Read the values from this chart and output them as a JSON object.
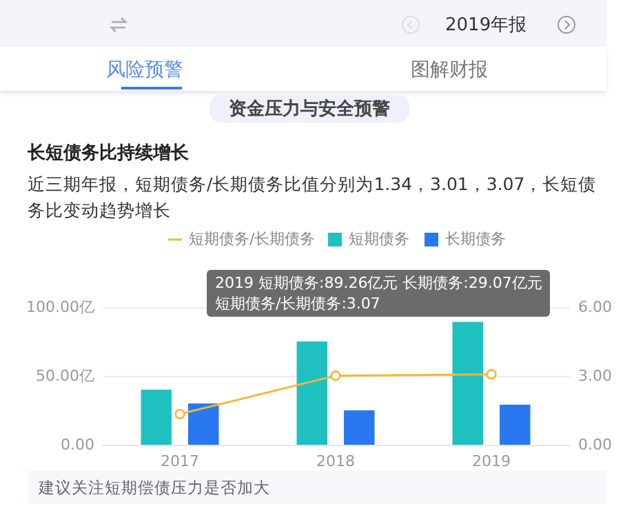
{
  "chart_data": {
    "type": "bar",
    "title": "长短债务比持续增长",
    "subtitle": "近三期年报，短期债务/长期债务比值分别为1.34，3.01，3.07，长短债务比变动趋势增长",
    "annotations": [
      "2019年报",
      "风险预警",
      "图解财报",
      "资金压力与安全预警",
      "2019",
      "短期债务:89.26亿元",
      "长期债务:29.07亿元",
      "短期债务/长期债务:3.07",
      "建议关注短期偿债压力是否加大"
    ],
    "categories": [
      "2017",
      "2018",
      "2019"
    ],
    "series": [
      {
        "name": "短期债务",
        "color": "#1fc0c0",
        "values": [
          40,
          75,
          89.26
        ]
      },
      {
        "name": "长期债务",
        "color": "#2a78f0",
        "values": [
          30,
          25,
          29.07
        ]
      },
      {
        "name": "短期债务/长期债务",
        "color": "#f7b536",
        "type": "line",
        "axis": "y2",
        "values": [
          1.34,
          3.01,
          3.07
        ]
      }
    ],
    "ylim": [
      0,
      100
    ],
    "yticks": [
      {
        "value": 0,
        "label": "0.00"
      },
      {
        "value": 50,
        "label": "50.00亿"
      },
      {
        "value": 100,
        "label": "100.00亿"
      }
    ],
    "y2lim": [
      0,
      6
    ],
    "y2ticks": [
      {
        "value": 0,
        "label": "0.00"
      },
      {
        "value": 3,
        "label": "3.00"
      },
      {
        "value": 6,
        "label": "6.00"
      }
    ],
    "grid": "y",
    "legend": "top",
    "marker": "circle"
  }
}
